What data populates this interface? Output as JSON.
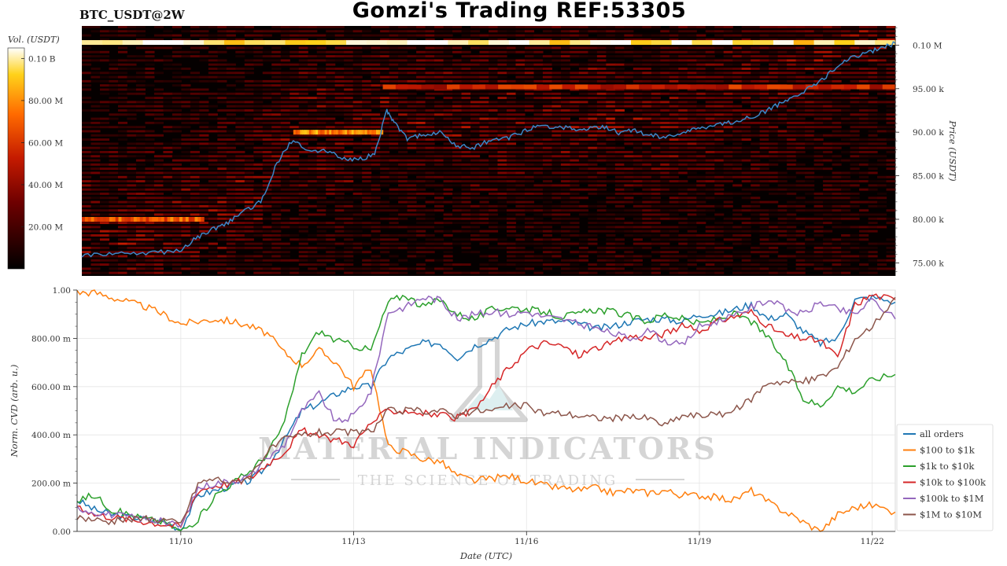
{
  "header": {
    "pair": "BTC_USDT@2W",
    "title": "Gomzi's Trading REF:53305"
  },
  "watermark": {
    "brand": "MATERIAL INDICATORS",
    "tagline": "THE SCIENCE OF TRADING"
  },
  "colorbar": {
    "title": "Vol. (USDT)",
    "ticks": [
      {
        "value": 0.02,
        "label": "20.00 M"
      },
      {
        "value": 0.04,
        "label": "40.00 M"
      },
      {
        "value": 0.06,
        "label": "60.00 M"
      },
      {
        "value": 0.08,
        "label": "80.00 M"
      },
      {
        "value": 0.1,
        "label": "0.10 B"
      }
    ],
    "range": [
      0,
      0.105
    ]
  },
  "chart_data": [
    {
      "type": "heatmap",
      "ylabel": "Price (USDT)",
      "ylim": [
        73500,
        102200
      ],
      "yticks": [
        {
          "value": 75000,
          "label": "75.00 k"
        },
        {
          "value": 80000,
          "label": "80.00 k"
        },
        {
          "value": 85000,
          "label": "85.00 k"
        },
        {
          "value": 90000,
          "label": "90.00 k"
        },
        {
          "value": 95000,
          "label": "95.00 k"
        },
        {
          "value": 100000,
          "label": "0.10 M"
        }
      ],
      "walls": [
        {
          "price": 100300,
          "from": 0.0,
          "to": 1.0,
          "level": 0.95
        },
        {
          "price": 95200,
          "from": 0.37,
          "to": 1.0,
          "level": 0.5
        },
        {
          "price": 90000,
          "from": 0.26,
          "to": 0.37,
          "level": 0.75
        },
        {
          "price": 80000,
          "from": 0.0,
          "to": 0.15,
          "level": 0.65
        }
      ],
      "price_series": {
        "color": "#3b87c8",
        "x": [
          0,
          0.03,
          0.06,
          0.09,
          0.12,
          0.14,
          0.16,
          0.18,
          0.2,
          0.22,
          0.24,
          0.26,
          0.28,
          0.3,
          0.32,
          0.34,
          0.36,
          0.375,
          0.385,
          0.4,
          0.42,
          0.44,
          0.46,
          0.48,
          0.5,
          0.52,
          0.54,
          0.56,
          0.58,
          0.6,
          0.62,
          0.64,
          0.66,
          0.68,
          0.7,
          0.72,
          0.74,
          0.76,
          0.78,
          0.8,
          0.82,
          0.84,
          0.86,
          0.88,
          0.9,
          0.92,
          0.94,
          0.96,
          0.98,
          1.0
        ],
        "y": [
          75800,
          76000,
          76100,
          76200,
          76400,
          77800,
          78800,
          79600,
          81000,
          82000,
          86500,
          89200,
          87800,
          88000,
          87000,
          86800,
          87500,
          92500,
          91000,
          89200,
          89800,
          90000,
          88500,
          88200,
          89000,
          89200,
          89900,
          90800,
          90600,
          90500,
          90300,
          90700,
          89900,
          90200,
          89600,
          89400,
          90000,
          90400,
          90900,
          91100,
          91700,
          92400,
          93400,
          94400,
          95300,
          96800,
          98300,
          99000,
          99600,
          100200
        ]
      }
    },
    {
      "type": "line",
      "xlabel": "Date (UTC)",
      "ylabel": "Norm. CVD (arb. u.)",
      "xlim": [
        8.2,
        22.4
      ],
      "ylim": [
        0,
        1.0
      ],
      "xticks": [
        {
          "value": 10,
          "label": "11/10"
        },
        {
          "value": 13,
          "label": "11/13"
        },
        {
          "value": 16,
          "label": "11/16"
        },
        {
          "value": 19,
          "label": "11/19"
        },
        {
          "value": 22,
          "label": "11/22"
        }
      ],
      "yticks": [
        {
          "value": 0.0,
          "label": "0.00"
        },
        {
          "value": 0.2,
          "label": "200.00 m"
        },
        {
          "value": 0.4,
          "label": "400.00 m"
        },
        {
          "value": 0.6,
          "label": "600.00 m"
        },
        {
          "value": 0.8,
          "label": "800.00 m"
        },
        {
          "value": 1.0,
          "label": "1.00"
        }
      ],
      "x": [
        8.2,
        8.5,
        8.8,
        9.1,
        9.4,
        9.7,
        10.0,
        10.3,
        10.6,
        10.9,
        11.2,
        11.5,
        11.8,
        12.1,
        12.4,
        12.7,
        13.0,
        13.3,
        13.6,
        13.9,
        14.2,
        14.5,
        14.8,
        15.1,
        15.4,
        15.7,
        16.0,
        16.3,
        16.6,
        16.9,
        17.2,
        17.5,
        17.8,
        18.1,
        18.4,
        18.7,
        19.0,
        19.3,
        19.6,
        19.9,
        20.2,
        20.5,
        20.8,
        21.1,
        21.4,
        21.7,
        22.0,
        22.4
      ],
      "series": [
        {
          "name": "all orders",
          "color": "#1f77b4",
          "values": [
            0.13,
            0.09,
            0.07,
            0.06,
            0.05,
            0.04,
            0.01,
            0.15,
            0.17,
            0.19,
            0.21,
            0.27,
            0.38,
            0.5,
            0.53,
            0.57,
            0.6,
            0.6,
            0.72,
            0.75,
            0.78,
            0.78,
            0.72,
            0.77,
            0.8,
            0.84,
            0.86,
            0.87,
            0.87,
            0.86,
            0.84,
            0.85,
            0.87,
            0.88,
            0.88,
            0.87,
            0.9,
            0.9,
            0.92,
            0.94,
            0.88,
            0.9,
            0.83,
            0.78,
            0.8,
            0.96,
            0.97,
            0.95
          ]
        },
        {
          "name": "$100 to $1k",
          "color": "#ff7f0e",
          "values": [
            0.99,
            0.99,
            0.97,
            0.95,
            0.93,
            0.9,
            0.86,
            0.87,
            0.88,
            0.87,
            0.85,
            0.82,
            0.74,
            0.69,
            0.75,
            0.7,
            0.6,
            0.68,
            0.35,
            0.33,
            0.3,
            0.29,
            0.23,
            0.21,
            0.22,
            0.23,
            0.21,
            0.19,
            0.18,
            0.17,
            0.18,
            0.16,
            0.17,
            0.16,
            0.17,
            0.15,
            0.15,
            0.14,
            0.13,
            0.17,
            0.12,
            0.08,
            0.04,
            0.0,
            0.07,
            0.1,
            0.11,
            0.08
          ]
        },
        {
          "name": "$1k to $10k",
          "color": "#2ca02c",
          "values": [
            0.13,
            0.15,
            0.09,
            0.07,
            0.05,
            0.04,
            0.0,
            0.05,
            0.15,
            0.2,
            0.25,
            0.32,
            0.45,
            0.73,
            0.83,
            0.79,
            0.77,
            0.75,
            0.95,
            0.98,
            0.93,
            0.96,
            0.9,
            0.88,
            0.92,
            0.93,
            0.92,
            0.91,
            0.89,
            0.9,
            0.92,
            0.91,
            0.89,
            0.87,
            0.9,
            0.88,
            0.86,
            0.88,
            0.9,
            0.87,
            0.8,
            0.7,
            0.55,
            0.52,
            0.6,
            0.58,
            0.63,
            0.65
          ]
        },
        {
          "name": "$10k to $100k",
          "color": "#d62728",
          "values": [
            0.11,
            0.07,
            0.06,
            0.05,
            0.04,
            0.03,
            0.02,
            0.17,
            0.19,
            0.2,
            0.22,
            0.28,
            0.33,
            0.42,
            0.39,
            0.38,
            0.36,
            0.45,
            0.5,
            0.5,
            0.49,
            0.48,
            0.47,
            0.5,
            0.6,
            0.68,
            0.75,
            0.78,
            0.77,
            0.73,
            0.76,
            0.78,
            0.81,
            0.8,
            0.82,
            0.85,
            0.83,
            0.87,
            0.89,
            0.91,
            0.85,
            0.81,
            0.8,
            0.79,
            0.72,
            0.94,
            0.98,
            0.96
          ]
        },
        {
          "name": "$100k to $1M",
          "color": "#9467bd",
          "values": [
            0.1,
            0.08,
            0.07,
            0.06,
            0.05,
            0.04,
            0.02,
            0.18,
            0.2,
            0.21,
            0.23,
            0.3,
            0.36,
            0.5,
            0.57,
            0.45,
            0.48,
            0.58,
            0.91,
            0.93,
            0.97,
            0.96,
            0.88,
            0.9,
            0.91,
            0.9,
            0.91,
            0.89,
            0.88,
            0.86,
            0.84,
            0.82,
            0.8,
            0.83,
            0.79,
            0.77,
            0.85,
            0.87,
            0.89,
            0.93,
            0.96,
            0.92,
            0.9,
            0.95,
            0.92,
            0.9,
            0.96,
            0.88
          ]
        },
        {
          "name": "$1M to $10M",
          "color": "#8c564b",
          "values": [
            0.06,
            0.05,
            0.04,
            0.05,
            0.05,
            0.05,
            0.03,
            0.2,
            0.22,
            0.2,
            0.23,
            0.33,
            0.38,
            0.4,
            0.41,
            0.41,
            0.41,
            0.41,
            0.5,
            0.5,
            0.5,
            0.5,
            0.48,
            0.5,
            0.5,
            0.52,
            0.52,
            0.49,
            0.49,
            0.48,
            0.47,
            0.47,
            0.47,
            0.47,
            0.44,
            0.48,
            0.48,
            0.48,
            0.5,
            0.55,
            0.62,
            0.62,
            0.62,
            0.64,
            0.68,
            0.8,
            0.85,
            0.97
          ]
        }
      ],
      "legend": "right"
    }
  ]
}
